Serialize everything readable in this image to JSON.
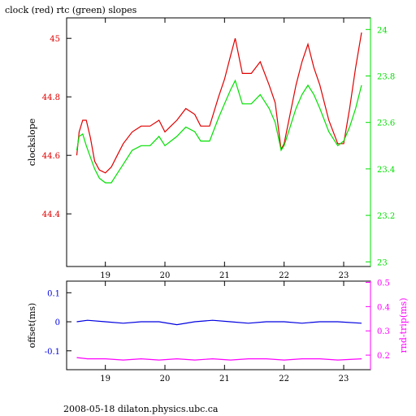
{
  "title": "clock (red) rtc (green) slopes",
  "footer": "2008-05-18 dilaton.physics.ubc.ca",
  "colors": {
    "clock": "#e00000",
    "rtc": "#00e000",
    "offset": "#0000e0",
    "rndtrip": "#ff00ff",
    "axis": "#000000"
  },
  "chart_data": [
    {
      "type": "line",
      "panel": "top",
      "xlabel": "",
      "ylabel": "clockslope",
      "ylabel_right": "",
      "xlim": [
        18.35,
        23.45
      ],
      "ylim_left": [
        44.22,
        45.07
      ],
      "ylim_right": [
        22.98,
        24.05
      ],
      "x_ticks": [
        19,
        20,
        21,
        22,
        23
      ],
      "y_ticks_left": [
        44.4,
        44.6,
        44.8,
        45
      ],
      "y_ticks_left_labels": [
        "44.4",
        "44.6",
        "44.8",
        "45"
      ],
      "y_ticks_right": [
        23,
        23.2,
        23.4,
        23.6,
        23.8,
        24
      ],
      "y_ticks_right_labels": [
        "23",
        "23.2",
        "23.4",
        "23.6",
        "23.8",
        "24"
      ],
      "series": [
        {
          "name": "clock",
          "axis": "left",
          "x": [
            18.52,
            18.56,
            18.62,
            18.68,
            18.75,
            18.82,
            18.9,
            19.0,
            19.1,
            19.2,
            19.3,
            19.45,
            19.6,
            19.75,
            19.9,
            20.0,
            20.1,
            20.2,
            20.35,
            20.5,
            20.6,
            20.75,
            20.9,
            21.0,
            21.1,
            21.18,
            21.3,
            21.45,
            21.6,
            21.75,
            21.85,
            21.95,
            22.0,
            22.1,
            22.2,
            22.3,
            22.4,
            22.5,
            22.6,
            22.75,
            22.9,
            23.0,
            23.1,
            23.2,
            23.3
          ],
          "y": [
            44.6,
            44.68,
            44.72,
            44.72,
            44.66,
            44.58,
            44.55,
            44.54,
            44.56,
            44.6,
            44.64,
            44.68,
            44.7,
            44.7,
            44.72,
            44.68,
            44.7,
            44.72,
            44.76,
            44.74,
            44.7,
            44.7,
            44.8,
            44.86,
            44.94,
            45.0,
            44.88,
            44.88,
            44.92,
            44.84,
            44.78,
            44.62,
            44.64,
            44.74,
            44.84,
            44.92,
            44.98,
            44.9,
            44.84,
            44.72,
            44.64,
            44.64,
            44.76,
            44.9,
            45.02
          ]
        },
        {
          "name": "rtc",
          "axis": "right",
          "x": [
            18.52,
            18.56,
            18.62,
            18.68,
            18.75,
            18.82,
            18.9,
            19.0,
            19.1,
            19.2,
            19.3,
            19.45,
            19.6,
            19.75,
            19.9,
            20.0,
            20.1,
            20.2,
            20.35,
            20.5,
            20.6,
            20.75,
            20.9,
            21.0,
            21.1,
            21.18,
            21.3,
            21.45,
            21.6,
            21.75,
            21.85,
            21.95,
            22.0,
            22.1,
            22.2,
            22.3,
            22.4,
            22.5,
            22.6,
            22.75,
            22.9,
            23.0,
            23.1,
            23.2,
            23.3
          ],
          "y": [
            23.48,
            23.54,
            23.55,
            23.5,
            23.45,
            23.4,
            23.36,
            23.34,
            23.34,
            23.38,
            23.42,
            23.48,
            23.5,
            23.5,
            23.54,
            23.5,
            23.52,
            23.54,
            23.58,
            23.56,
            23.52,
            23.52,
            23.62,
            23.68,
            23.74,
            23.78,
            23.68,
            23.68,
            23.72,
            23.66,
            23.6,
            23.48,
            23.5,
            23.58,
            23.66,
            23.72,
            23.76,
            23.72,
            23.66,
            23.56,
            23.5,
            23.52,
            23.58,
            23.66,
            23.76
          ]
        }
      ]
    },
    {
      "type": "line",
      "panel": "bottom",
      "xlabel": "",
      "ylabel": "offset(ms)",
      "ylabel_right": "rnd-trip(ms)",
      "xlim": [
        18.35,
        23.45
      ],
      "ylim_left": [
        -0.165,
        0.14
      ],
      "ylim_right": [
        0.14,
        0.505
      ],
      "x_ticks": [
        19,
        20,
        21,
        22,
        23
      ],
      "y_ticks_left": [
        -0.1,
        0,
        0.1
      ],
      "y_ticks_left_labels": [
        "-0.1",
        "0",
        "0.1"
      ],
      "y_ticks_right": [
        0.2,
        0.3,
        0.4,
        0.5
      ],
      "y_ticks_right_labels": [
        "0.2",
        "0.3",
        "0.4",
        "0.5"
      ],
      "series": [
        {
          "name": "offset",
          "axis": "left",
          "x": [
            18.52,
            18.7,
            19.0,
            19.3,
            19.6,
            19.9,
            20.2,
            20.5,
            20.8,
            21.1,
            21.4,
            21.7,
            22.0,
            22.3,
            22.6,
            22.9,
            23.3
          ],
          "y": [
            0.0,
            0.005,
            0.0,
            -0.005,
            0.0,
            0.0,
            -0.01,
            0.0,
            0.005,
            0.0,
            -0.005,
            0.0,
            0.0,
            -0.005,
            0.0,
            0.0,
            -0.005
          ]
        },
        {
          "name": "rnd-trip",
          "axis": "right",
          "x": [
            18.52,
            18.7,
            19.0,
            19.3,
            19.6,
            19.9,
            20.2,
            20.5,
            20.8,
            21.1,
            21.4,
            21.7,
            22.0,
            22.3,
            22.6,
            22.9,
            23.3
          ],
          "y": [
            0.19,
            0.185,
            0.185,
            0.18,
            0.185,
            0.18,
            0.185,
            0.18,
            0.185,
            0.18,
            0.185,
            0.185,
            0.18,
            0.185,
            0.185,
            0.18,
            0.185
          ]
        }
      ]
    }
  ]
}
